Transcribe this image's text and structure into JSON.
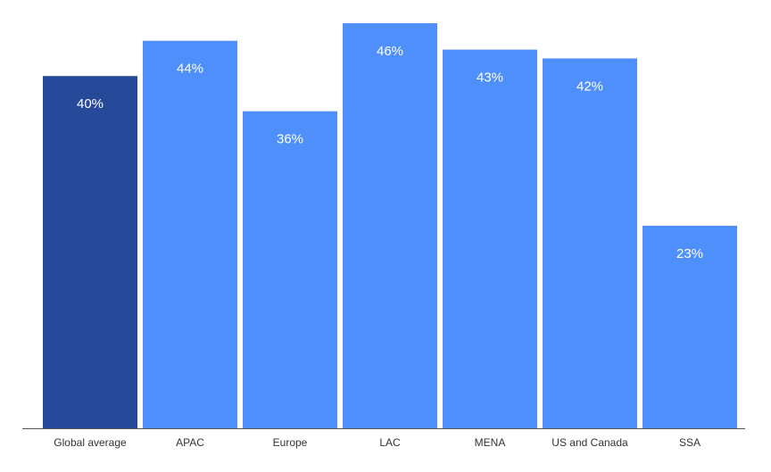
{
  "chart_data": {
    "type": "bar",
    "categories": [
      "Global average",
      "APAC",
      "Europe",
      "LAC",
      "MENA",
      "US and Canada",
      "SSA"
    ],
    "values": [
      40,
      44,
      36,
      46,
      43,
      42,
      23
    ],
    "value_labels": [
      "40%",
      "44%",
      "36%",
      "46%",
      "43%",
      "42%",
      "23%"
    ],
    "colors": [
      "#264a99",
      "#4f8ffc",
      "#4f8ffc",
      "#4f8ffc",
      "#4f8ffc",
      "#4f8ffc",
      "#4f8ffc"
    ]
  }
}
